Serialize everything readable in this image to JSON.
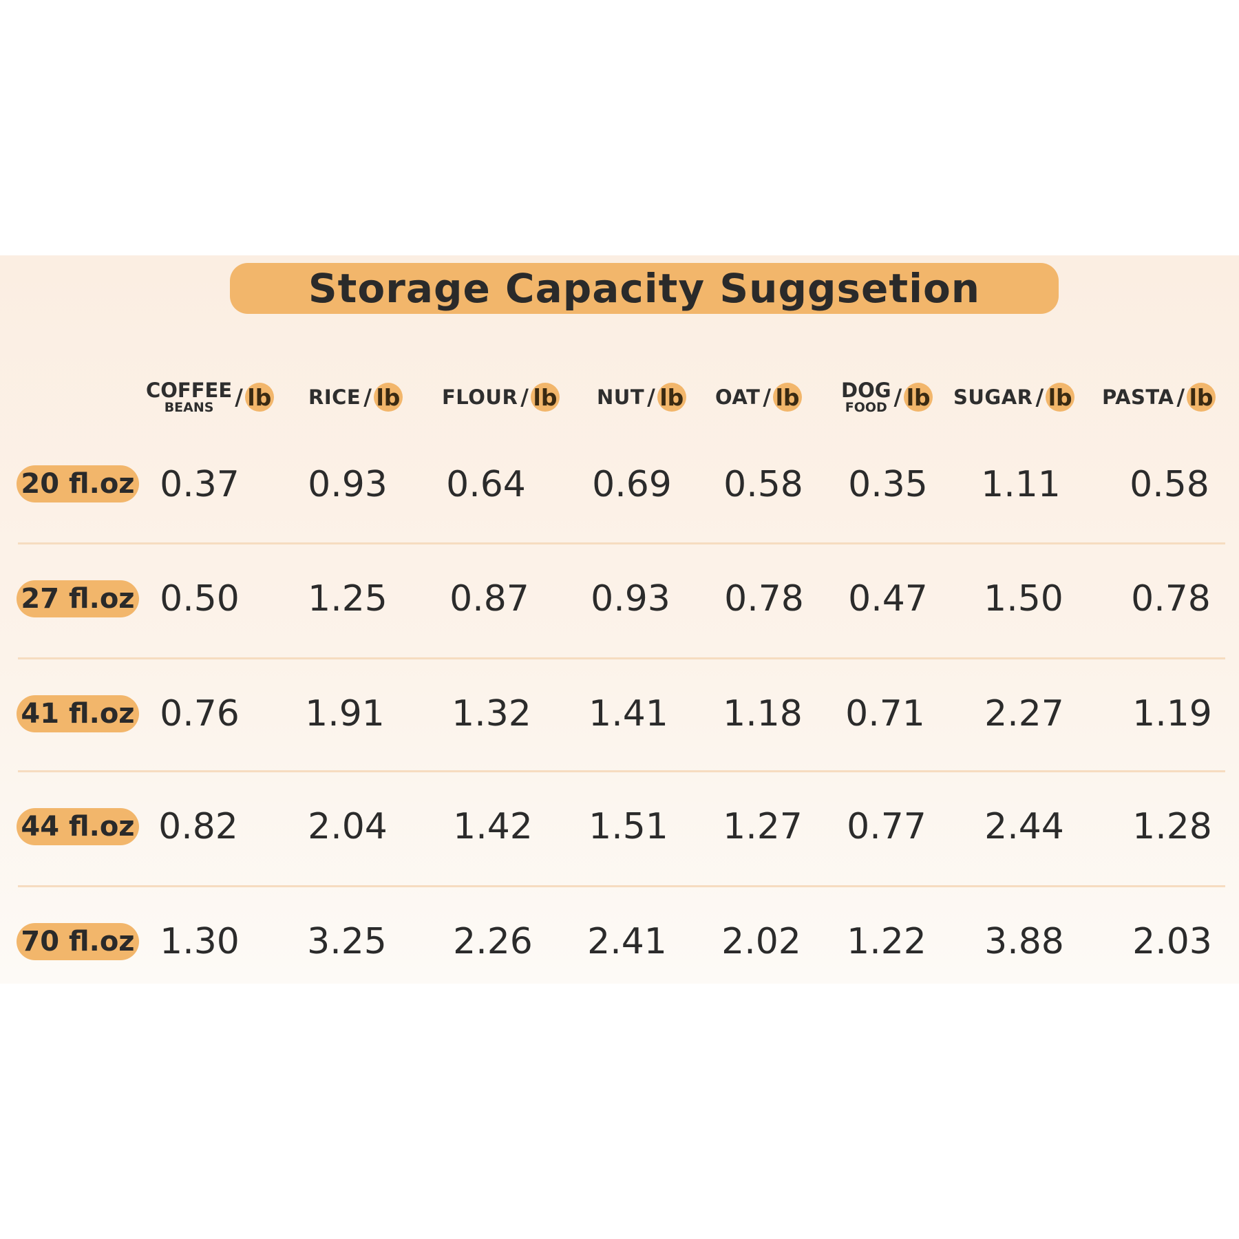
{
  "title": "Storage Capacity Suggsetion",
  "unit": "lb",
  "columns": [
    {
      "label": "COFFEE",
      "sublabel": "BEANS"
    },
    {
      "label": "RICE",
      "sublabel": ""
    },
    {
      "label": "FLOUR",
      "sublabel": ""
    },
    {
      "label": "NUT",
      "sublabel": ""
    },
    {
      "label": "OAT",
      "sublabel": ""
    },
    {
      "label": "DOG",
      "sublabel": "FOOD"
    },
    {
      "label": "SUGAR",
      "sublabel": ""
    },
    {
      "label": "PASTA",
      "sublabel": ""
    }
  ],
  "rows": [
    {
      "size": "20 fl.oz",
      "values": [
        "0.37",
        "0.93",
        "0.64",
        "0.69",
        "0.58",
        "0.35",
        "1.11",
        "0.58"
      ]
    },
    {
      "size": "27 fl.oz",
      "values": [
        "0.50",
        "1.25",
        "0.87",
        "0.93",
        "0.78",
        "0.47",
        "1.50",
        "0.78"
      ]
    },
    {
      "size": "41 fl.oz",
      "values": [
        "0.76",
        "1.91",
        "1.32",
        "1.41",
        "1.18",
        "0.71",
        "2.27",
        "1.19"
      ]
    },
    {
      "size": "44 fl.oz",
      "values": [
        "0.82",
        "2.04",
        "1.42",
        "1.51",
        "1.27",
        "0.77",
        "2.44",
        "1.28"
      ]
    },
    {
      "size": "70 fl.oz",
      "values": [
        "1.30",
        "3.25",
        "2.26",
        "2.41",
        "2.02",
        "1.22",
        "3.88",
        "2.03"
      ]
    }
  ],
  "chart_data": {
    "type": "table",
    "title": "Storage Capacity Suggsetion",
    "unit": "lb",
    "columns": [
      "COFFEE BEANS",
      "RICE",
      "FLOUR",
      "NUT",
      "OAT",
      "DOG FOOD",
      "SUGAR",
      "PASTA"
    ],
    "row_labels": [
      "20 fl.oz",
      "27 fl.oz",
      "41 fl.oz",
      "44 fl.oz",
      "70 fl.oz"
    ],
    "values": [
      [
        0.37,
        0.93,
        0.64,
        0.69,
        0.58,
        0.35,
        1.11,
        0.58
      ],
      [
        0.5,
        1.25,
        0.87,
        0.93,
        0.78,
        0.47,
        1.5,
        0.78
      ],
      [
        0.76,
        1.91,
        1.32,
        1.41,
        1.18,
        0.71,
        2.27,
        1.19
      ],
      [
        0.82,
        2.04,
        1.42,
        1.51,
        1.27,
        0.77,
        2.44,
        1.28
      ],
      [
        1.3,
        3.25,
        2.26,
        2.41,
        2.02,
        1.22,
        3.88,
        2.03
      ]
    ]
  },
  "colors": {
    "accent": "#f2b66b",
    "panel_top": "#fbeee2",
    "panel_bottom": "#fdfaf6",
    "divider": "#f6dcc0",
    "text": "#2b2b2b"
  }
}
